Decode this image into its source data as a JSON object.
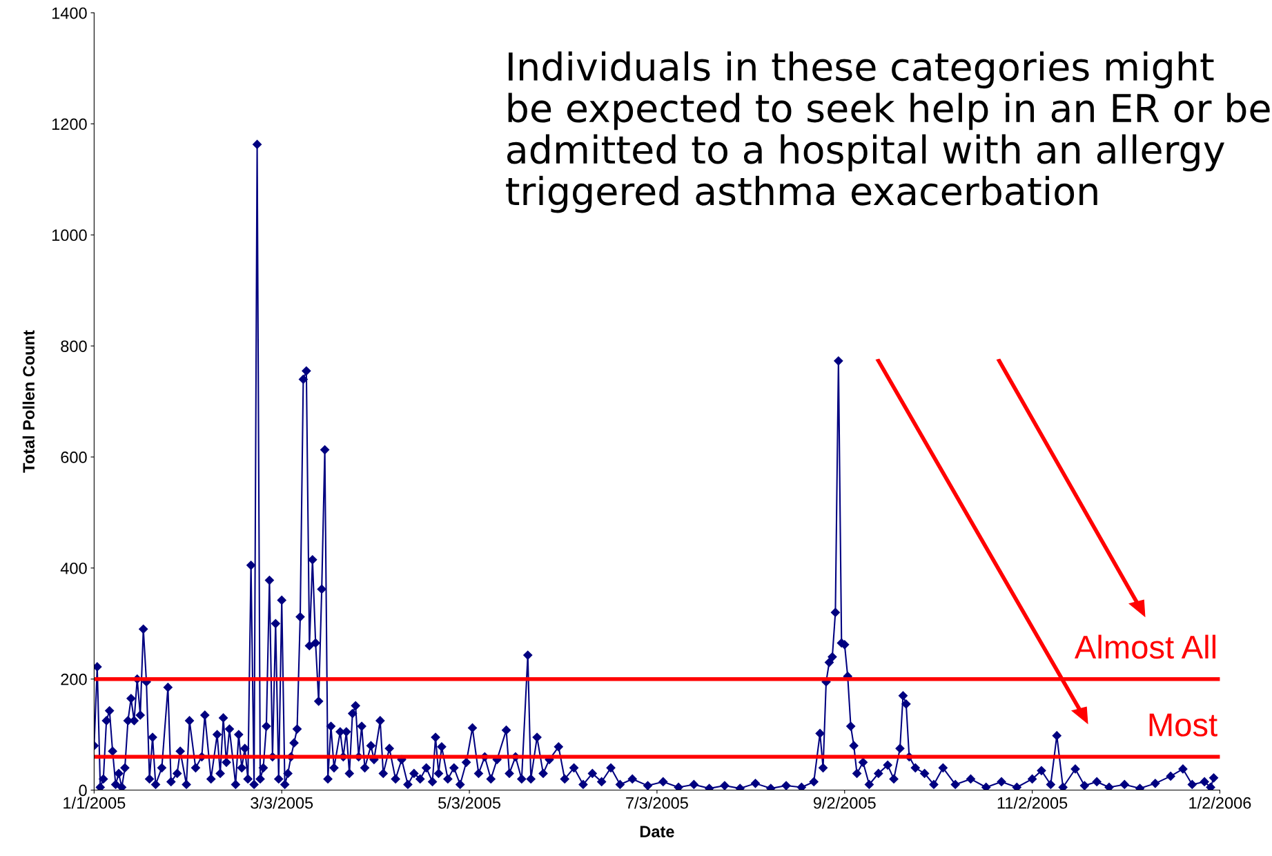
{
  "chart_data": {
    "type": "line",
    "xlabel": "Date",
    "ylabel": "Total Pollen Count",
    "annotations": [
      "Individuals in these categories might be expected to seek help in an ER or be admitted to a hospital with an allergy triggered asthma exacerbation"
    ],
    "x": [
      "2005-01-01",
      "2005-01-02",
      "2005-01-03",
      "2005-01-04",
      "2005-01-05",
      "2005-01-06",
      "2005-01-07",
      "2005-01-08",
      "2005-01-09",
      "2005-01-10",
      "2005-01-11",
      "2005-01-12",
      "2005-01-13",
      "2005-01-14",
      "2005-01-15",
      "2005-01-16",
      "2005-01-17",
      "2005-01-18",
      "2005-01-19",
      "2005-01-20",
      "2005-01-21",
      "2005-01-23",
      "2005-01-25",
      "2005-01-26",
      "2005-01-28",
      "2005-01-29",
      "2005-01-31",
      "2005-02-01",
      "2005-02-03",
      "2005-02-05",
      "2005-02-06",
      "2005-02-08",
      "2005-02-10",
      "2005-02-11",
      "2005-02-12",
      "2005-02-13",
      "2005-02-14",
      "2005-02-16",
      "2005-02-17",
      "2005-02-18",
      "2005-02-19",
      "2005-02-20",
      "2005-02-21",
      "2005-02-22",
      "2005-02-23",
      "2005-02-24",
      "2005-02-25",
      "2005-02-26",
      "2005-02-27",
      "2005-02-28",
      "2005-03-01",
      "2005-03-02",
      "2005-03-03",
      "2005-03-04",
      "2005-03-05",
      "2005-03-06",
      "2005-03-07",
      "2005-03-08",
      "2005-03-09",
      "2005-03-10",
      "2005-03-11",
      "2005-03-12",
      "2005-03-13",
      "2005-03-14",
      "2005-03-15",
      "2005-03-16",
      "2005-03-17",
      "2005-03-18",
      "2005-03-19",
      "2005-03-20",
      "2005-03-22",
      "2005-03-23",
      "2005-03-24",
      "2005-03-25",
      "2005-03-26",
      "2005-03-27",
      "2005-03-28",
      "2005-03-29",
      "2005-03-30",
      "2005-04-01",
      "2005-04-02",
      "2005-04-04",
      "2005-04-05",
      "2005-04-07",
      "2005-04-09",
      "2005-04-11",
      "2005-04-13",
      "2005-04-15",
      "2005-04-17",
      "2005-04-19",
      "2005-04-21",
      "2005-04-22",
      "2005-04-23",
      "2005-04-24",
      "2005-04-26",
      "2005-04-28",
      "2005-04-30",
      "2005-05-02",
      "2005-05-04",
      "2005-05-06",
      "2005-05-08",
      "2005-05-10",
      "2005-05-12",
      "2005-05-15",
      "2005-05-16",
      "2005-05-18",
      "2005-05-20",
      "2005-05-22",
      "2005-05-23",
      "2005-05-25",
      "2005-05-27",
      "2005-05-29",
      "2005-06-01",
      "2005-06-03",
      "2005-06-06",
      "2005-06-09",
      "2005-06-12",
      "2005-06-15",
      "2005-06-18",
      "2005-06-21",
      "2005-06-25",
      "2005-06-30",
      "2005-07-05",
      "2005-07-10",
      "2005-07-15",
      "2005-07-20",
      "2005-07-25",
      "2005-07-30",
      "2005-08-04",
      "2005-08-09",
      "2005-08-14",
      "2005-08-19",
      "2005-08-23",
      "2005-08-25",
      "2005-08-26",
      "2005-08-27",
      "2005-08-28",
      "2005-08-29",
      "2005-08-30",
      "2005-08-31",
      "2005-09-01",
      "2005-09-02",
      "2005-09-03",
      "2005-09-04",
      "2005-09-05",
      "2005-09-06",
      "2005-09-08",
      "2005-09-10",
      "2005-09-13",
      "2005-09-16",
      "2005-09-18",
      "2005-09-20",
      "2005-09-21",
      "2005-09-22",
      "2005-09-23",
      "2005-09-25",
      "2005-09-28",
      "2005-10-01",
      "2005-10-04",
      "2005-10-08",
      "2005-10-13",
      "2005-10-18",
      "2005-10-23",
      "2005-10-28",
      "2005-11-02",
      "2005-11-05",
      "2005-11-08",
      "2005-11-10",
      "2005-11-12",
      "2005-11-16",
      "2005-11-19",
      "2005-11-23",
      "2005-11-27",
      "2005-12-02",
      "2005-12-07",
      "2005-12-12",
      "2005-12-17",
      "2005-12-21",
      "2005-12-24",
      "2005-12-28",
      "2005-12-30",
      "2005-12-31"
    ],
    "series": [
      {
        "color": "#000080",
        "values": [
          80,
          222,
          5,
          20,
          125,
          143,
          70,
          10,
          30,
          5,
          40,
          125,
          165,
          125,
          200,
          135,
          290,
          195,
          20,
          95,
          10,
          40,
          185,
          15,
          30,
          70,
          10,
          125,
          40,
          60,
          135,
          20,
          100,
          30,
          130,
          50,
          110,
          10,
          100,
          40,
          75,
          20,
          405,
          10,
          1163,
          20,
          40,
          115,
          378,
          60,
          300,
          20,
          342,
          10,
          30,
          60,
          85,
          110,
          312,
          740,
          755,
          260,
          415,
          265,
          160,
          362,
          613,
          20,
          115,
          40,
          105,
          60,
          105,
          30,
          138,
          152,
          60,
          115,
          40,
          80,
          55,
          125,
          30,
          75,
          20,
          55,
          10,
          30,
          20,
          40,
          15,
          95,
          30,
          78,
          20,
          40,
          10,
          50,
          112,
          30,
          60,
          20,
          55,
          108,
          30,
          60,
          20,
          243,
          20,
          95,
          30,
          55,
          78,
          20,
          40,
          10,
          30,
          15,
          40,
          10,
          20,
          8,
          15,
          5,
          10,
          3,
          8,
          3,
          12,
          3,
          8,
          5,
          15,
          102,
          40,
          195,
          230,
          240,
          320,
          773,
          265,
          262,
          205,
          115,
          80,
          30,
          50,
          10,
          30,
          45,
          20,
          75,
          170,
          155,
          60,
          40,
          30,
          10,
          40,
          10,
          20,
          5,
          15,
          5,
          20,
          35,
          10,
          98,
          5,
          38,
          8,
          15,
          5,
          10,
          3,
          12,
          25,
          38,
          10,
          15,
          5,
          22
        ]
      }
    ],
    "marker": "diamond",
    "line_style": "solid",
    "grid": false,
    "legend": false,
    "xlim": [
      "2005-01-01",
      "2006-01-02"
    ],
    "xticks": [
      {
        "value": "2005-01-01",
        "label": "1/1/2005"
      },
      {
        "value": "2005-03-03",
        "label": "3/3/2005"
      },
      {
        "value": "2005-05-03",
        "label": "5/3/2005"
      },
      {
        "value": "2005-07-03",
        "label": "7/3/2005"
      },
      {
        "value": "2005-09-02",
        "label": "9/2/2005"
      },
      {
        "value": "2005-11-02",
        "label": "11/2/2005"
      },
      {
        "value": "2006-01-02",
        "label": "1/2/2006"
      }
    ],
    "ylim": [
      0,
      1400
    ],
    "yticks": [
      0,
      200,
      400,
      600,
      800,
      1000,
      1200,
      1400
    ],
    "ref_lines": [
      {
        "axis": "y",
        "value": 200,
        "label": "Almost All",
        "color": "#ff0000"
      },
      {
        "axis": "y",
        "value": 60,
        "label": "Most",
        "color": "#ff0000"
      }
    ]
  }
}
